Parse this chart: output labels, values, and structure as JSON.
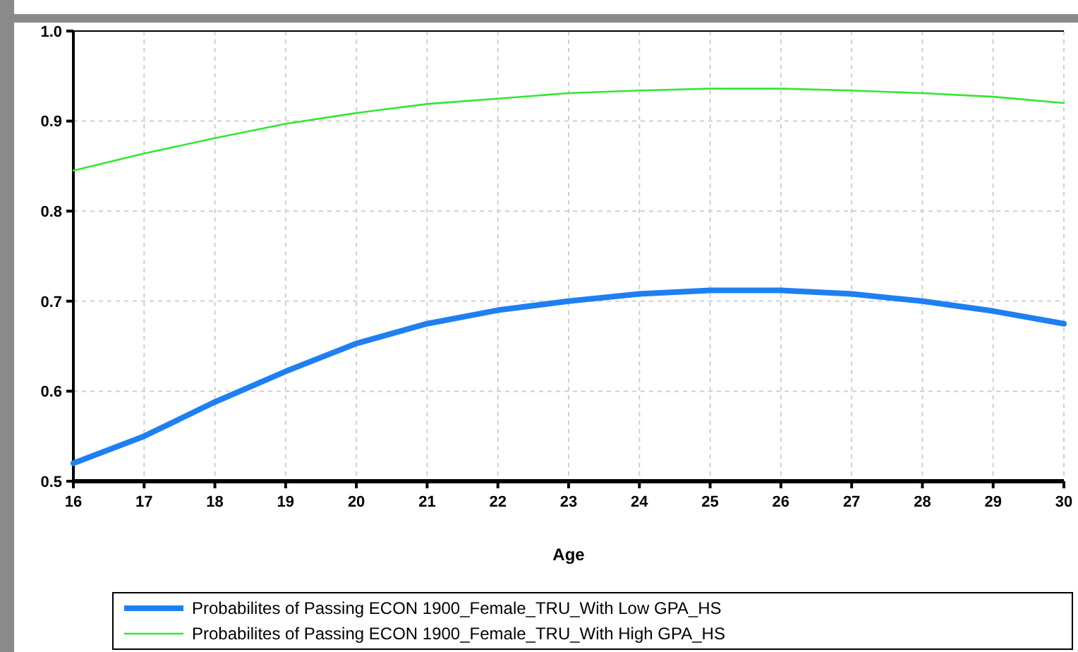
{
  "chart_data": {
    "type": "line",
    "xlabel": "Age",
    "x": [
      16,
      17,
      18,
      19,
      20,
      21,
      22,
      23,
      24,
      25,
      26,
      27,
      28,
      29,
      30
    ],
    "xlim": [
      16,
      30
    ],
    "xticks": [
      16,
      17,
      18,
      19,
      20,
      21,
      22,
      23,
      24,
      25,
      26,
      27,
      28,
      29,
      30
    ],
    "ylim": [
      0.5,
      1.0
    ],
    "yticks": [
      0.5,
      0.6,
      0.7,
      0.8,
      0.9,
      {
        "value": 1.0,
        "label": "1.0"
      }
    ],
    "grid": true,
    "legend": "bottom",
    "line_style": "solid",
    "series": [
      {
        "name": "Probabilites of Passing ECON 1900_Female_TRU_With Low GPA_HS",
        "color": "#1e80f0",
        "values": [
          0.52,
          0.55,
          0.588,
          0.622,
          0.653,
          0.675,
          0.69,
          0.7,
          0.708,
          0.712,
          0.712,
          0.708,
          0.7,
          0.689,
          0.675
        ]
      },
      {
        "name": "Probabilites of Passing ECON 1900_Female_TRU_With High GPA_HS",
        "color": "#33e633",
        "values": [
          0.845,
          0.864,
          0.881,
          0.897,
          0.909,
          0.919,
          0.925,
          0.931,
          0.934,
          0.936,
          0.936,
          0.934,
          0.931,
          0.927,
          0.92
        ]
      }
    ]
  }
}
